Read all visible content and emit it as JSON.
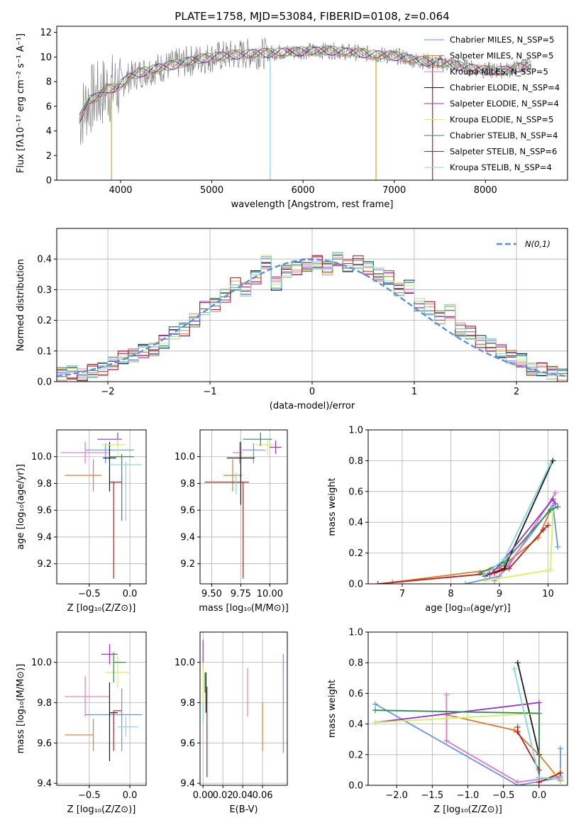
{
  "palette": [
    "#6495ed",
    "#e07b28",
    "#e377c2",
    "#1a1a1a",
    "#9932cc",
    "#d4f05a",
    "#2e8b57",
    "#b22222",
    "#7fd8e0",
    "#808080",
    "#daa520",
    "#4682b4"
  ],
  "chart_data": [
    {
      "id": "spectrum",
      "type": "line",
      "title": "PLATE=1758, MJD=53084, FIBERID=0108, z=0.064",
      "xlabel": "wavelength [Angstrom, rest frame]",
      "ylabel": "Flux [fλ10⁻¹⁷ erg cm⁻² s⁻¹ A⁻¹]",
      "xlim": [
        3300,
        8900
      ],
      "ylim": [
        0,
        12.5
      ],
      "xticks": [
        4000,
        5000,
        6000,
        7000,
        8000
      ],
      "yticks": [
        0,
        2,
        4,
        6,
        8,
        10,
        12
      ],
      "grid": false,
      "legend_position": "top-right",
      "observed": {
        "x": [
          3550,
          3650,
          3750,
          3850,
          3950,
          4100,
          4250,
          4400,
          4550,
          4700,
          4850,
          5000,
          5150,
          5300,
          5450,
          5600,
          5750,
          5900,
          6050,
          6200,
          6350,
          6500,
          6650,
          6800,
          6950,
          7100,
          7250,
          7400,
          7550,
          7700,
          7850,
          8000,
          8150,
          8300,
          8450
        ],
        "y": [
          5.0,
          6.5,
          6.8,
          7.4,
          7.5,
          8.4,
          8.8,
          9.1,
          9.3,
          9.6,
          9.8,
          10.0,
          10.1,
          10.2,
          10.3,
          10.3,
          10.4,
          10.4,
          10.5,
          10.5,
          10.5,
          10.4,
          10.3,
          10.2,
          10.1,
          10.0,
          9.7,
          9.6,
          9.5,
          9.3,
          9.1,
          8.9,
          8.9,
          9.0,
          9.3
        ]
      },
      "series": [
        {
          "name": "Chabrier MILES, N_SSP=5"
        },
        {
          "name": "Salpeter MILES, N_SSP=5"
        },
        {
          "name": "Kroupa MILES, N_SSP=5"
        },
        {
          "name": "Chabrier ELODIE, N_SSP=4"
        },
        {
          "name": "Salpeter ELODIE, N_SSP=4"
        },
        {
          "name": "Kroupa ELODIE, N_SSP=5"
        },
        {
          "name": "Chabrier STELIB, N_SSP=4"
        },
        {
          "name": "Salpeter STELIB, N_SSP=6"
        },
        {
          "name": "Kroupa STELIB, N_SSP=4"
        }
      ]
    },
    {
      "id": "residuals",
      "type": "line",
      "xlabel": "(data-model)/error",
      "ylabel": "Normed distribution",
      "xlim": [
        -2.5,
        2.5
      ],
      "ylim": [
        0,
        0.5
      ],
      "xticks": [
        -2,
        -1,
        0,
        1,
        2
      ],
      "yticks": [
        0.0,
        0.1,
        0.2,
        0.3,
        0.4
      ],
      "grid": true,
      "legend_position": "top-right",
      "reference_label": "N(0,1)",
      "bin_edges": [
        -2.5,
        -2.4,
        -2.3,
        -2.2,
        -2.1,
        -2.0,
        -1.9,
        -1.8,
        -1.7,
        -1.6,
        -1.5,
        -1.4,
        -1.3,
        -1.2,
        -1.1,
        -1.0,
        -0.9,
        -0.8,
        -0.7,
        -0.6,
        -0.5,
        -0.4,
        -0.3,
        -0.2,
        -0.1,
        0.0,
        0.1,
        0.2,
        0.3,
        0.4,
        0.5,
        0.6,
        0.7,
        0.8,
        0.9,
        1.0,
        1.1,
        1.2,
        1.3,
        1.4,
        1.5,
        1.6,
        1.7,
        1.8,
        1.9,
        2.0,
        2.1,
        2.2,
        2.3,
        2.4,
        2.5
      ],
      "hist_base": [
        0.025,
        0.03,
        0.02,
        0.035,
        0.04,
        0.06,
        0.08,
        0.085,
        0.1,
        0.105,
        0.13,
        0.16,
        0.17,
        0.2,
        0.24,
        0.25,
        0.28,
        0.32,
        0.3,
        0.34,
        0.39,
        0.32,
        0.36,
        0.37,
        0.38,
        0.39,
        0.37,
        0.4,
        0.38,
        0.39,
        0.37,
        0.35,
        0.34,
        0.3,
        0.31,
        0.25,
        0.24,
        0.21,
        0.23,
        0.17,
        0.16,
        0.13,
        0.12,
        0.1,
        0.08,
        0.07,
        0.04,
        0.04,
        0.03,
        0.02
      ]
    },
    {
      "id": "age-vs-Z",
      "type": "scatter",
      "xlabel": "Z [log₁₀(Z/Z⊙)]",
      "ylabel": "age  [log₁₀(age/yr)]",
      "xlim": [
        -0.9,
        0.2
      ],
      "ylim": [
        9.05,
        10.2
      ],
      "xticks": [
        -0.5,
        0.0
      ],
      "yticks": [
        9.2,
        9.4,
        9.6,
        9.8,
        10.0
      ],
      "grid": true,
      "points": [
        {
          "x": -0.3,
          "xerr": [
            0.25,
            0.35
          ],
          "y": 10.05,
          "yerr": [
            0.1,
            0.05
          ],
          "c": 0
        },
        {
          "x": -0.45,
          "xerr": [
            0.35,
            0.1
          ],
          "y": 9.86,
          "yerr": [
            0.12,
            0.12
          ],
          "c": 1
        },
        {
          "x": -0.55,
          "xerr": [
            0.3,
            0.3
          ],
          "y": 10.03,
          "yerr": [
            0.08,
            0.08
          ],
          "c": 2
        },
        {
          "x": -0.25,
          "xerr": [
            0.08,
            0.08
          ],
          "y": 9.99,
          "yerr": [
            0.25,
            0.12
          ],
          "c": 3
        },
        {
          "x": -0.15,
          "xerr": [
            0.25,
            0.05
          ],
          "y": 10.13,
          "yerr": [
            0.05,
            0.05
          ],
          "c": 4
        },
        {
          "x": -0.15,
          "xerr": [
            0.2,
            0.1
          ],
          "y": 10.09,
          "yerr": [
            0.08,
            0.04
          ],
          "c": 5
        },
        {
          "x": -0.1,
          "xerr": [
            0.15,
            0.15
          ],
          "y": 10.0,
          "yerr": [
            0.48,
            0.02
          ],
          "c": 6
        },
        {
          "x": -0.2,
          "xerr": [
            0.05,
            0.1
          ],
          "y": 9.81,
          "yerr": [
            0.72,
            0.0
          ],
          "c": 7
        },
        {
          "x": -0.05,
          "xerr": [
            0.2,
            0.2
          ],
          "y": 9.94,
          "yerr": [
            0.42,
            0.02
          ],
          "c": 8
        }
      ]
    },
    {
      "id": "age-vs-mass",
      "type": "scatter",
      "xlabel": "mass [log₁₀(M/M⊙)]",
      "xlim": [
        9.4,
        10.15
      ],
      "ylim": [
        9.05,
        10.2
      ],
      "xticks": [
        9.5,
        9.75,
        10.0
      ],
      "yticks": [
        9.2,
        9.4,
        9.6,
        9.8,
        10.0
      ],
      "grid": true,
      "points": [
        {
          "x": 9.86,
          "xerr": [
            0.1,
            0.1
          ],
          "y": 10.05,
          "yerr": [
            0.1,
            0.05
          ],
          "c": 0
        },
        {
          "x": 9.68,
          "xerr": [
            0.08,
            0.08
          ],
          "y": 9.86,
          "yerr": [
            0.12,
            0.12
          ],
          "c": 1
        },
        {
          "x": 9.74,
          "xerr": [
            0.06,
            0.02
          ],
          "y": 10.03,
          "yerr": [
            0.08,
            0.08
          ],
          "c": 2
        },
        {
          "x": 9.75,
          "xerr": [
            0.12,
            0.12
          ],
          "y": 9.99,
          "yerr": [
            0.35,
            0.12
          ],
          "c": 3
        },
        {
          "x": 10.05,
          "xerr": [
            0.05,
            0.05
          ],
          "y": 10.07,
          "yerr": [
            0.05,
            0.05
          ],
          "c": 4
        },
        {
          "x": 9.98,
          "xerr": [
            0.1,
            0.06
          ],
          "y": 10.09,
          "yerr": [
            0.08,
            0.04
          ],
          "c": 5
        },
        {
          "x": 9.92,
          "xerr": [
            0.15,
            0.1
          ],
          "y": 10.13,
          "yerr": [
            0.05,
            0.05
          ],
          "c": 6
        },
        {
          "x": 9.77,
          "xerr": [
            0.33,
            0.05
          ],
          "y": 9.81,
          "yerr": [
            0.72,
            0.0
          ],
          "c": 7
        },
        {
          "x": 9.71,
          "xerr": [
            0.02,
            0.02
          ],
          "y": 9.8,
          "yerr": [
            0.08,
            0.08
          ],
          "c": 8
        }
      ]
    },
    {
      "id": "weight-vs-age",
      "type": "line",
      "xlabel": "age  [log₁₀(age/yr)]",
      "ylabel": "mass weight",
      "xlim": [
        6.3,
        10.4
      ],
      "ylim": [
        0,
        1.0
      ],
      "xticks": [
        7,
        8,
        9,
        10
      ],
      "yticks": [
        0.0,
        0.2,
        0.4,
        0.6,
        0.8,
        1.0
      ],
      "grid": true,
      "series": [
        {
          "c": 0,
          "x": [
            8.3,
            9.0,
            10.1,
            10.2
          ],
          "y": [
            0.0,
            0.05,
            0.51,
            0.24
          ]
        },
        {
          "c": 1,
          "x": [
            6.8,
            8.8,
            9.0,
            9.8,
            10.05
          ],
          "y": [
            0.01,
            0.09,
            0.1,
            0.3,
            0.48
          ]
        },
        {
          "c": 2,
          "x": [
            8.9,
            9.2,
            10.15
          ],
          "y": [
            0.02,
            0.12,
            0.59
          ]
        },
        {
          "c": 3,
          "x": [
            8.7,
            9.1,
            10.1
          ],
          "y": [
            0.05,
            0.1,
            0.8
          ]
        },
        {
          "c": 4,
          "x": [
            8.8,
            9.0,
            10.1,
            10.15
          ],
          "y": [
            0.06,
            0.12,
            0.55,
            0.52
          ]
        },
        {
          "c": 5,
          "x": [
            8.7,
            10.05,
            10.1
          ],
          "y": [
            0.02,
            0.09,
            0.47
          ]
        },
        {
          "c": 6,
          "x": [
            8.6,
            9.1,
            10.05,
            10.2
          ],
          "y": [
            0.07,
            0.14,
            0.48,
            0.5
          ]
        },
        {
          "c": 7,
          "x": [
            6.5,
            8.9,
            9.2,
            9.9,
            10.0
          ],
          "y": [
            0.0,
            0.07,
            0.1,
            0.35,
            0.38
          ]
        },
        {
          "c": 8,
          "x": [
            8.7,
            9.1,
            10.05
          ],
          "y": [
            0.06,
            0.16,
            0.78
          ]
        }
      ]
    },
    {
      "id": "mass-vs-Z",
      "type": "scatter",
      "xlabel": "Z [log₁₀(Z/Z⊙)]",
      "ylabel": "mass [log₁₀(M/M⊙)]",
      "xlim": [
        -0.9,
        0.2
      ],
      "ylim": [
        9.39,
        10.15
      ],
      "xticks": [
        -0.5,
        0.0
      ],
      "yticks": [
        9.4,
        9.6,
        9.8,
        10.0
      ],
      "grid": true,
      "points": [
        {
          "x": -0.1,
          "xerr": [
            0.45,
            0.25
          ],
          "y": 9.74,
          "yerr": [
            0.18,
            0.13
          ],
          "c": 0
        },
        {
          "x": -0.45,
          "xerr": [
            0.35,
            0.0
          ],
          "y": 9.64,
          "yerr": [
            0.08,
            0.08
          ],
          "c": 1
        },
        {
          "x": -0.55,
          "xerr": [
            0.25,
            0.3
          ],
          "y": 9.83,
          "yerr": [
            0.1,
            0.1
          ],
          "c": 2
        },
        {
          "x": -0.25,
          "xerr": [
            0.0,
            0.1
          ],
          "y": 9.75,
          "yerr": [
            0.24,
            0.15
          ],
          "c": 3
        },
        {
          "x": -0.25,
          "xerr": [
            0.1,
            0.1
          ],
          "y": 10.04,
          "yerr": [
            0.05,
            0.05
          ],
          "c": 4
        },
        {
          "x": -0.15,
          "xerr": [
            0.15,
            0.15
          ],
          "y": 9.95,
          "yerr": [
            0.08,
            0.08
          ],
          "c": 5
        },
        {
          "x": -0.2,
          "xerr": [
            0.0,
            0.15
          ],
          "y": 10.0,
          "yerr": [
            0.1,
            0.05
          ],
          "c": 6
        },
        {
          "x": -0.2,
          "xerr": [
            0.0,
            0.1
          ],
          "y": 9.76,
          "yerr": [
            0.2,
            0.0
          ],
          "c": 7
        },
        {
          "x": -0.05,
          "xerr": [
            0.1,
            0.15
          ],
          "y": 9.68,
          "yerr": [
            0.05,
            0.05
          ],
          "c": 8
        }
      ]
    },
    {
      "id": "mass-vs-ebv",
      "type": "scatter",
      "xlabel": "E(B-V)",
      "xlim": [
        -0.003,
        0.085
      ],
      "ylim": [
        9.39,
        10.15
      ],
      "xticks": [
        0.0,
        0.02,
        0.04,
        0.06
      ],
      "yticks": [
        9.4,
        9.6,
        9.8,
        10.0
      ],
      "grid": true,
      "points": [
        {
          "x": 0.081,
          "xerr": [
            0,
            0
          ],
          "y": 9.8,
          "yerr": [
            0.25,
            0.24
          ],
          "c": 0
        },
        {
          "x": 0.06,
          "xerr": [
            0,
            0
          ],
          "y": 9.7,
          "yerr": [
            0.14,
            0.1
          ],
          "c": 1
        },
        {
          "x": 0.045,
          "xerr": [
            0,
            0
          ],
          "y": 9.85,
          "yerr": [
            0.12,
            0.12
          ],
          "c": 2
        },
        {
          "x": 0.003,
          "xerr": [
            0,
            0
          ],
          "y": 9.85,
          "yerr": [
            0.1,
            0.1
          ],
          "c": 3
        },
        {
          "x": 0.0,
          "xerr": [
            0,
            0
          ],
          "y": 10.02,
          "yerr": [
            0.05,
            0.09
          ],
          "c": 4
        },
        {
          "x": 0.0,
          "xerr": [
            0,
            0
          ],
          "y": 9.9,
          "yerr": [
            0.1,
            0.1
          ],
          "c": 5
        },
        {
          "x": 0.002,
          "xerr": [
            0,
            0
          ],
          "y": 9.9,
          "yerr": [
            0.05,
            0.05
          ],
          "c": 6
        },
        {
          "x": 0.004,
          "xerr": [
            0,
            0
          ],
          "y": 9.65,
          "yerr": [
            0.22,
            0.23
          ],
          "c": 7
        },
        {
          "x": 0.0,
          "xerr": [
            0,
            0
          ],
          "y": 9.75,
          "yerr": [
            0.05,
            0.05
          ],
          "c": 8
        }
      ]
    },
    {
      "id": "weight-vs-Z",
      "type": "line",
      "xlabel": "Z [log₁₀(Z/Z⊙)]",
      "ylabel": "mass weight",
      "xlim": [
        -2.4,
        0.4
      ],
      "ylim": [
        0,
        1.0
      ],
      "xticks": [
        -2.0,
        -1.5,
        -1.0,
        -0.5,
        0.0
      ],
      "yticks": [
        0.0,
        0.2,
        0.4,
        0.6,
        0.8,
        1.0
      ],
      "grid": true,
      "series": [
        {
          "c": 0,
          "x": [
            -2.3,
            -0.3,
            0.3,
            0.3
          ],
          "y": [
            0.53,
            0.0,
            0.05,
            0.24
          ]
        },
        {
          "c": 1,
          "x": [
            -1.3,
            -1.3,
            -0.35,
            0.0,
            0.3
          ],
          "y": [
            0.29,
            0.46,
            0.36,
            0.2,
            0.03
          ]
        },
        {
          "c": 2,
          "x": [
            -1.3,
            -1.3,
            -0.3,
            0.3
          ],
          "y": [
            0.59,
            0.29,
            0.02,
            0.06
          ]
        },
        {
          "c": 3,
          "x": [
            -0.3,
            0.0,
            0.0
          ],
          "y": [
            0.8,
            0.2,
            0.05
          ]
        },
        {
          "c": 4,
          "x": [
            -2.3,
            0.0,
            0.0
          ],
          "y": [
            0.41,
            0.54,
            0.05
          ]
        },
        {
          "c": 5,
          "x": [
            -2.3,
            0.0,
            0.0,
            0.3
          ],
          "y": [
            0.41,
            0.47,
            0.02,
            0.09
          ]
        },
        {
          "c": 6,
          "x": [
            -2.3,
            0.0,
            0.0
          ],
          "y": [
            0.49,
            0.47,
            0.02
          ]
        },
        {
          "c": 7,
          "x": [
            -0.3,
            -0.3,
            0.0,
            0.0,
            0.3
          ],
          "y": [
            0.38,
            0.35,
            0.1,
            0.02,
            0.08
          ]
        },
        {
          "c": 8,
          "x": [
            -0.35,
            0.0,
            0.3
          ],
          "y": [
            0.76,
            0.05,
            0.04
          ]
        }
      ]
    }
  ]
}
